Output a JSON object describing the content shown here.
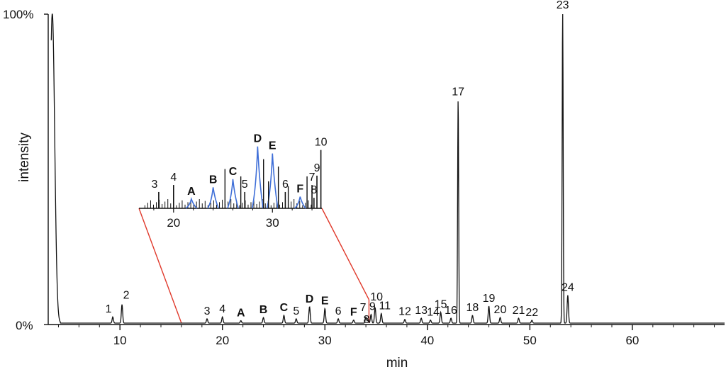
{
  "chart_data": {
    "type": "line",
    "xlabel": "min",
    "ylabel": "intensity",
    "xlim": [
      3,
      69
    ],
    "ylim": [
      0,
      100
    ],
    "y_tick_labels": [
      "0%",
      "100%"
    ],
    "x_ticks": [
      10,
      20,
      30,
      40,
      50,
      60
    ],
    "x_tick_labels": [
      "10",
      "20",
      "30",
      "40",
      "50",
      "60"
    ],
    "line_color": "#111111",
    "inset_peak_color": "#3f6fd8",
    "zoom_line_color": "#e0392b",
    "grid": false,
    "peaks": [
      {
        "label": "1",
        "x": 9.3,
        "y": 2.0,
        "bold": false
      },
      {
        "label": "2",
        "x": 10.2,
        "y": 6.0,
        "bold": false
      },
      {
        "label": "3",
        "x": 18.5,
        "y": 1.4,
        "bold": false
      },
      {
        "label": "4",
        "x": 20.0,
        "y": 2.0,
        "bold": false
      },
      {
        "label": "A",
        "x": 21.8,
        "y": 0.8,
        "bold": true
      },
      {
        "label": "B",
        "x": 24.0,
        "y": 1.8,
        "bold": true
      },
      {
        "label": "C",
        "x": 26.0,
        "y": 2.5,
        "bold": true
      },
      {
        "label": "5",
        "x": 27.2,
        "y": 1.4,
        "bold": false
      },
      {
        "label": "D",
        "x": 28.5,
        "y": 5.3,
        "bold": true
      },
      {
        "label": "E",
        "x": 30.0,
        "y": 4.7,
        "bold": true
      },
      {
        "label": "6",
        "x": 31.3,
        "y": 1.4,
        "bold": false
      },
      {
        "label": "F",
        "x": 32.8,
        "y": 1.0,
        "bold": true
      },
      {
        "label": "7",
        "x": 34.0,
        "y": 2.0,
        "bold": false
      },
      {
        "label": "8",
        "x": 34.2,
        "y": 0.9,
        "bold": false
      },
      {
        "label": "9",
        "x": 34.5,
        "y": 2.8,
        "bold": false
      },
      {
        "label": "10",
        "x": 34.9,
        "y": 5.0,
        "bold": false
      },
      {
        "label": "11",
        "x": 35.5,
        "y": 3.1,
        "bold": false
      },
      {
        "label": "12",
        "x": 37.8,
        "y": 1.2,
        "bold": false
      },
      {
        "label": "13",
        "x": 39.4,
        "y": 1.6,
        "bold": false
      },
      {
        "label": "14",
        "x": 40.3,
        "y": 1.0,
        "bold": false
      },
      {
        "label": "15",
        "x": 41.3,
        "y": 3.5,
        "bold": false
      },
      {
        "label": "16",
        "x": 42.3,
        "y": 1.6,
        "bold": false
      },
      {
        "label": "17",
        "x": 43.0,
        "y": 72.0,
        "bold": false
      },
      {
        "label": "18",
        "x": 44.4,
        "y": 2.5,
        "bold": false
      },
      {
        "label": "19",
        "x": 46.0,
        "y": 5.5,
        "bold": false
      },
      {
        "label": "20",
        "x": 47.1,
        "y": 1.8,
        "bold": false
      },
      {
        "label": "21",
        "x": 48.9,
        "y": 1.6,
        "bold": false
      },
      {
        "label": "22",
        "x": 50.2,
        "y": 0.9,
        "bold": false
      },
      {
        "label": "23",
        "x": 53.2,
        "y": 100.0,
        "bold": false
      },
      {
        "label": "24",
        "x": 53.7,
        "y": 9.0,
        "bold": false
      }
    ],
    "inset": {
      "xlim": [
        16.5,
        35.0
      ],
      "ylim": [
        0,
        6
      ],
      "x_ticks": [
        20,
        30
      ],
      "x_tick_labels": [
        "20",
        "30"
      ],
      "blue_peaks": [
        "A",
        "B",
        "C",
        "D",
        "E",
        "F"
      ],
      "zoom_from_main_x": [
        16.0,
        34.3
      ]
    }
  }
}
